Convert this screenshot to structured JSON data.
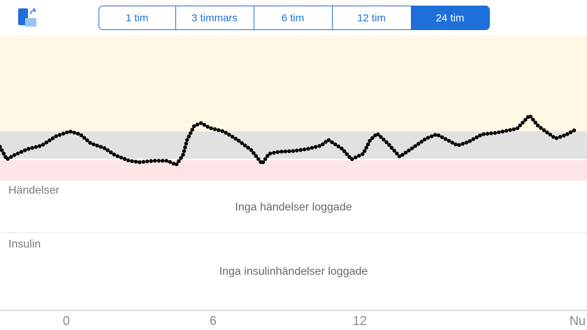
{
  "segmented_control": {
    "options": [
      "1 tim",
      "3 timmars",
      "6 tim",
      "12 tim",
      "24 tim"
    ],
    "selected": 4
  },
  "chart_data": {
    "type": "line",
    "x": [
      -2.71,
      -2.43,
      -2.14,
      -1.57,
      -1.0,
      -0.43,
      0.14,
      0.57,
      1.0,
      1.57,
      2.0,
      2.57,
      3.0,
      3.57,
      4.14,
      4.49,
      4.77,
      4.94,
      5.23,
      5.51,
      5.86,
      6.43,
      7.0,
      7.57,
      8.0,
      8.29,
      8.71,
      9.29,
      9.86,
      10.43,
      10.71,
      11.29,
      11.66,
      12.14,
      12.43,
      12.71,
      13.14,
      13.63,
      14.14,
      14.71,
      15.14,
      15.57,
      16.0,
      16.43,
      17.0,
      17.57,
      18.43,
      18.94,
      19.29,
      20.0,
      20.43,
      20.89
    ],
    "values": [
      23.1,
      14.4,
      17.3,
      21.6,
      24.0,
      30.3,
      33.7,
      31.7,
      25.5,
      22.1,
      17.3,
      13.5,
      12.5,
      13.5,
      13.5,
      10.6,
      17.3,
      27.9,
      37.5,
      39.4,
      36.1,
      33.7,
      27.9,
      20.7,
      11.5,
      18.3,
      19.7,
      20.2,
      21.6,
      24.0,
      27.9,
      21.6,
      14.4,
      18.3,
      27.9,
      32.2,
      25.5,
      16.3,
      22.1,
      28.8,
      31.7,
      27.9,
      24.0,
      26.4,
      31.7,
      32.7,
      35.6,
      44.7,
      37.5,
      28.8,
      31.3,
      35.6
    ],
    "color": "#000000",
    "bands": [
      {
        "range": [
          33.7,
          100
        ],
        "color": "#fff8e5"
      },
      {
        "range": [
          14.4,
          33.7
        ],
        "color": "#e1e1e1"
      },
      {
        "range": [
          0,
          14.4
        ],
        "color": "#ffe4e7"
      }
    ],
    "xlim": [
      -2.71,
      21.29
    ],
    "ylim": [
      0,
      100
    ],
    "xticks": [
      0,
      6,
      12,
      {
        "value": 20.77,
        "label": "Nu"
      }
    ]
  },
  "events": {
    "title": "Händelser",
    "message": "Inga händelser loggade"
  },
  "insulin": {
    "title": "Insulin",
    "message": "Inga insulinhändelser loggade"
  }
}
